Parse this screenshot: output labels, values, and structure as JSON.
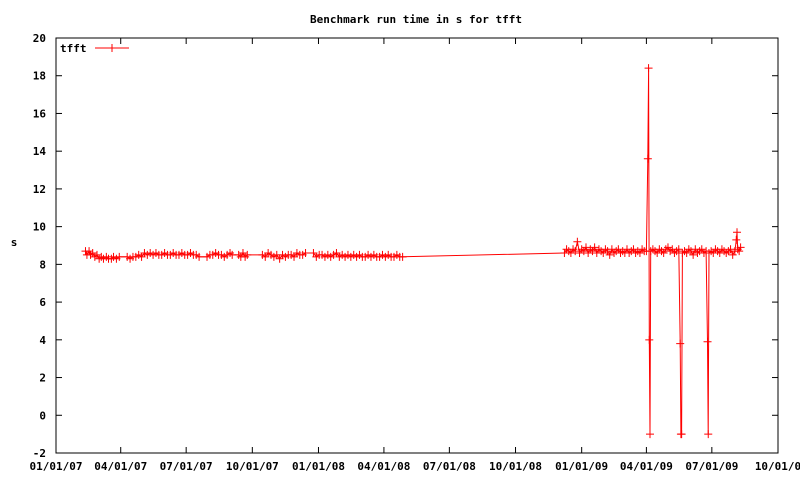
{
  "chart_data": {
    "type": "line",
    "title": "Benchmark run time in s for tfft",
    "xlabel": "",
    "ylabel": "s",
    "xlim": [
      "2007-01-01",
      "2009-10-01"
    ],
    "ylim": [
      -2,
      20
    ],
    "y_ticks": [
      -2,
      0,
      2,
      4,
      6,
      8,
      10,
      12,
      14,
      16,
      18,
      20
    ],
    "x_ticks": [
      {
        "date": "2007-01-01",
        "label": "01/01/07"
      },
      {
        "date": "2007-04-01",
        "label": "04/01/07"
      },
      {
        "date": "2007-07-01",
        "label": "07/01/07"
      },
      {
        "date": "2007-10-01",
        "label": "10/01/07"
      },
      {
        "date": "2008-01-01",
        "label": "01/01/08"
      },
      {
        "date": "2008-04-01",
        "label": "04/01/08"
      },
      {
        "date": "2008-07-01",
        "label": "07/01/08"
      },
      {
        "date": "2008-10-01",
        "label": "10/01/08"
      },
      {
        "date": "2009-01-01",
        "label": "01/01/09"
      },
      {
        "date": "2009-04-01",
        "label": "04/01/09"
      },
      {
        "date": "2009-07-01",
        "label": "07/01/09"
      },
      {
        "date": "2009-10-01",
        "label": "10/01/0"
      }
    ],
    "grid": false,
    "legend": "top-left",
    "series": [
      {
        "name": "tfft",
        "color": "#ff0000",
        "marker": "plus",
        "points": [
          [
            "2007-02-11",
            8.7
          ],
          [
            "2007-02-13",
            8.5
          ],
          [
            "2007-02-16",
            8.7
          ],
          [
            "2007-02-18",
            8.5
          ],
          [
            "2007-02-21",
            8.6
          ],
          [
            "2007-02-24",
            8.4
          ],
          [
            "2007-02-27",
            8.5
          ],
          [
            "2007-03-02",
            8.3
          ],
          [
            "2007-03-05",
            8.4
          ],
          [
            "2007-03-08",
            8.3
          ],
          [
            "2007-03-12",
            8.4
          ],
          [
            "2007-03-15",
            8.3
          ],
          [
            "2007-03-19",
            8.3
          ],
          [
            "2007-03-22",
            8.4
          ],
          [
            "2007-03-26",
            8.3
          ],
          [
            "2007-03-30",
            8.4
          ],
          [
            "2007-04-10",
            8.4
          ],
          [
            "2007-04-14",
            8.3
          ],
          [
            "2007-04-18",
            8.4
          ],
          [
            "2007-04-22",
            8.4
          ],
          [
            "2007-04-26",
            8.5
          ],
          [
            "2007-04-30",
            8.4
          ],
          [
            "2007-05-04",
            8.6
          ],
          [
            "2007-05-08",
            8.5
          ],
          [
            "2007-05-12",
            8.6
          ],
          [
            "2007-05-16",
            8.5
          ],
          [
            "2007-05-20",
            8.6
          ],
          [
            "2007-05-24",
            8.5
          ],
          [
            "2007-05-28",
            8.5
          ],
          [
            "2007-06-01",
            8.6
          ],
          [
            "2007-06-05",
            8.5
          ],
          [
            "2007-06-09",
            8.5
          ],
          [
            "2007-06-13",
            8.6
          ],
          [
            "2007-06-17",
            8.5
          ],
          [
            "2007-06-21",
            8.5
          ],
          [
            "2007-06-25",
            8.6
          ],
          [
            "2007-06-29",
            8.5
          ],
          [
            "2007-07-03",
            8.5
          ],
          [
            "2007-07-07",
            8.6
          ],
          [
            "2007-07-11",
            8.5
          ],
          [
            "2007-07-15",
            8.5
          ],
          [
            "2007-07-19",
            8.4
          ],
          [
            "2007-07-30",
            8.4
          ],
          [
            "2007-08-03",
            8.5
          ],
          [
            "2007-08-07",
            8.5
          ],
          [
            "2007-08-11",
            8.6
          ],
          [
            "2007-08-15",
            8.5
          ],
          [
            "2007-08-19",
            8.5
          ],
          [
            "2007-08-23",
            8.4
          ],
          [
            "2007-08-27",
            8.5
          ],
          [
            "2007-08-31",
            8.6
          ],
          [
            "2007-09-03",
            8.5
          ],
          [
            "2007-09-12",
            8.5
          ],
          [
            "2007-09-15",
            8.4
          ],
          [
            "2007-09-18",
            8.6
          ],
          [
            "2007-09-21",
            8.4
          ],
          [
            "2007-09-24",
            8.5
          ],
          [
            "2007-10-15",
            8.5
          ],
          [
            "2007-10-19",
            8.4
          ],
          [
            "2007-10-23",
            8.6
          ],
          [
            "2007-10-27",
            8.5
          ],
          [
            "2007-10-31",
            8.4
          ],
          [
            "2007-11-04",
            8.5
          ],
          [
            "2007-11-08",
            8.3
          ],
          [
            "2007-11-12",
            8.5
          ],
          [
            "2007-11-16",
            8.4
          ],
          [
            "2007-11-20",
            8.5
          ],
          [
            "2007-11-24",
            8.5
          ],
          [
            "2007-11-28",
            8.4
          ],
          [
            "2007-12-02",
            8.6
          ],
          [
            "2007-12-06",
            8.5
          ],
          [
            "2007-12-10",
            8.5
          ],
          [
            "2007-12-14",
            8.6
          ],
          [
            "2007-12-25",
            8.6
          ],
          [
            "2007-12-29",
            8.4
          ],
          [
            "2008-01-02",
            8.5
          ],
          [
            "2008-01-06",
            8.5
          ],
          [
            "2008-01-10",
            8.4
          ],
          [
            "2008-01-14",
            8.5
          ],
          [
            "2008-01-18",
            8.4
          ],
          [
            "2008-01-22",
            8.5
          ],
          [
            "2008-01-26",
            8.6
          ],
          [
            "2008-01-30",
            8.4
          ],
          [
            "2008-02-03",
            8.5
          ],
          [
            "2008-02-07",
            8.4
          ],
          [
            "2008-02-11",
            8.5
          ],
          [
            "2008-02-15",
            8.4
          ],
          [
            "2008-02-19",
            8.5
          ],
          [
            "2008-02-23",
            8.4
          ],
          [
            "2008-02-27",
            8.5
          ],
          [
            "2008-03-02",
            8.4
          ],
          [
            "2008-03-06",
            8.4
          ],
          [
            "2008-03-10",
            8.5
          ],
          [
            "2008-03-14",
            8.4
          ],
          [
            "2008-03-18",
            8.5
          ],
          [
            "2008-03-22",
            8.4
          ],
          [
            "2008-03-26",
            8.4
          ],
          [
            "2008-03-30",
            8.5
          ],
          [
            "2008-04-03",
            8.4
          ],
          [
            "2008-04-07",
            8.5
          ],
          [
            "2008-04-11",
            8.4
          ],
          [
            "2008-04-15",
            8.4
          ],
          [
            "2008-04-19",
            8.5
          ],
          [
            "2008-04-23",
            8.4
          ],
          [
            "2008-04-27",
            8.4
          ],
          [
            "2008-12-08",
            8.6
          ],
          [
            "2008-12-11",
            8.8
          ],
          [
            "2008-12-14",
            8.7
          ],
          [
            "2008-12-17",
            8.6
          ],
          [
            "2008-12-20",
            8.8
          ],
          [
            "2008-12-23",
            8.7
          ],
          [
            "2008-12-26",
            9.2
          ],
          [
            "2008-12-29",
            8.6
          ],
          [
            "2009-01-01",
            8.8
          ],
          [
            "2009-01-04",
            8.7
          ],
          [
            "2009-01-07",
            8.9
          ],
          [
            "2009-01-10",
            8.6
          ],
          [
            "2009-01-13",
            8.8
          ],
          [
            "2009-01-16",
            8.7
          ],
          [
            "2009-01-19",
            8.9
          ],
          [
            "2009-01-22",
            8.6
          ],
          [
            "2009-01-25",
            8.8
          ],
          [
            "2009-01-28",
            8.7
          ],
          [
            "2009-01-31",
            8.6
          ],
          [
            "2009-02-03",
            8.8
          ],
          [
            "2009-02-06",
            8.7
          ],
          [
            "2009-02-09",
            8.5
          ],
          [
            "2009-02-12",
            8.8
          ],
          [
            "2009-02-15",
            8.6
          ],
          [
            "2009-02-18",
            8.7
          ],
          [
            "2009-02-21",
            8.8
          ],
          [
            "2009-02-24",
            8.6
          ],
          [
            "2009-02-27",
            8.7
          ],
          [
            "2009-03-02",
            8.6
          ],
          [
            "2009-03-05",
            8.8
          ],
          [
            "2009-03-08",
            8.6
          ],
          [
            "2009-03-11",
            8.7
          ],
          [
            "2009-03-14",
            8.8
          ],
          [
            "2009-03-17",
            8.6
          ],
          [
            "2009-03-20",
            8.7
          ],
          [
            "2009-03-23",
            8.6
          ],
          [
            "2009-03-26",
            8.8
          ],
          [
            "2009-03-29",
            8.7
          ],
          [
            "2009-04-01",
            8.7
          ],
          [
            "2009-04-03",
            13.6
          ],
          [
            "2009-04-04",
            18.4
          ],
          [
            "2009-04-05",
            4.0
          ],
          [
            "2009-04-06",
            -1.0
          ],
          [
            "2009-04-07",
            8.7
          ],
          [
            "2009-04-10",
            8.8
          ],
          [
            "2009-04-13",
            8.7
          ],
          [
            "2009-04-16",
            8.6
          ],
          [
            "2009-04-19",
            8.8
          ],
          [
            "2009-04-22",
            8.7
          ],
          [
            "2009-04-25",
            8.6
          ],
          [
            "2009-04-28",
            8.8
          ],
          [
            "2009-05-01",
            8.9
          ],
          [
            "2009-05-04",
            8.7
          ],
          [
            "2009-05-07",
            8.8
          ],
          [
            "2009-05-10",
            8.6
          ],
          [
            "2009-05-13",
            8.7
          ],
          [
            "2009-05-16",
            8.8
          ],
          [
            "2009-05-18",
            3.8
          ],
          [
            "2009-05-19",
            -1.0
          ],
          [
            "2009-05-20",
            -1.0
          ],
          [
            "2009-05-21",
            8.6
          ],
          [
            "2009-05-24",
            8.7
          ],
          [
            "2009-05-27",
            8.6
          ],
          [
            "2009-05-30",
            8.8
          ],
          [
            "2009-06-02",
            8.7
          ],
          [
            "2009-06-05",
            8.5
          ],
          [
            "2009-06-08",
            8.8
          ],
          [
            "2009-06-11",
            8.6
          ],
          [
            "2009-06-14",
            8.7
          ],
          [
            "2009-06-17",
            8.8
          ],
          [
            "2009-06-20",
            8.6
          ],
          [
            "2009-06-23",
            8.7
          ],
          [
            "2009-06-25",
            3.9
          ],
          [
            "2009-06-26",
            -1.0
          ],
          [
            "2009-06-27",
            8.6
          ],
          [
            "2009-06-30",
            8.7
          ],
          [
            "2009-07-03",
            8.6
          ],
          [
            "2009-07-06",
            8.8
          ],
          [
            "2009-07-09",
            8.7
          ],
          [
            "2009-07-12",
            8.6
          ],
          [
            "2009-07-15",
            8.8
          ],
          [
            "2009-07-18",
            8.7
          ],
          [
            "2009-07-21",
            8.6
          ],
          [
            "2009-07-24",
            8.7
          ],
          [
            "2009-07-27",
            8.8
          ],
          [
            "2009-07-30",
            8.5
          ],
          [
            "2009-08-02",
            8.7
          ],
          [
            "2009-08-04",
            9.3
          ],
          [
            "2009-08-05",
            9.7
          ],
          [
            "2009-08-06",
            8.8
          ],
          [
            "2009-08-08",
            8.7
          ],
          [
            "2009-08-10",
            8.9
          ]
        ]
      }
    ]
  }
}
